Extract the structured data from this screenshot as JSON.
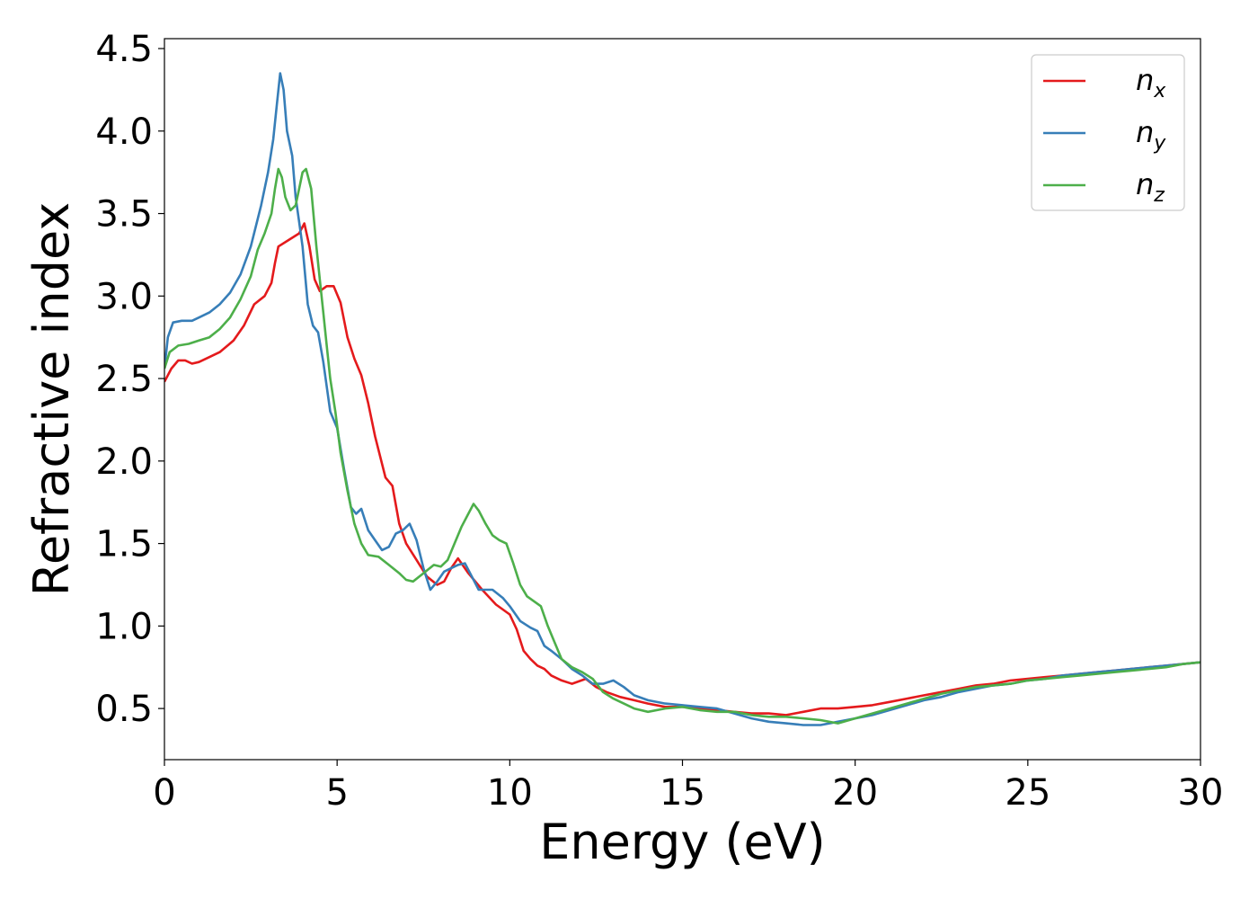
{
  "chart_data": {
    "type": "line",
    "xlabel": "Energy (eV)",
    "ylabel": "Refractive index",
    "xlim": [
      0,
      30
    ],
    "ylim": [
      0.19,
      4.56
    ],
    "xticks": [
      "0",
      "5",
      "10",
      "15",
      "20",
      "25",
      "30"
    ],
    "yticks": [
      "0.5",
      "1.0",
      "1.5",
      "2.0",
      "2.5",
      "3.0",
      "3.5",
      "4.0",
      "4.5"
    ],
    "grid": false,
    "legend_position": "top-right",
    "series": [
      {
        "name": "n",
        "subscript": "x",
        "color": "#e41a1c",
        "points": [
          [
            0,
            2.48
          ],
          [
            0.2,
            2.56
          ],
          [
            0.4,
            2.61
          ],
          [
            0.6,
            2.61
          ],
          [
            0.8,
            2.59
          ],
          [
            1.0,
            2.6
          ],
          [
            1.3,
            2.63
          ],
          [
            1.6,
            2.66
          ],
          [
            2.0,
            2.73
          ],
          [
            2.3,
            2.82
          ],
          [
            2.6,
            2.95
          ],
          [
            2.9,
            3.0
          ],
          [
            3.1,
            3.08
          ],
          [
            3.2,
            3.2
          ],
          [
            3.3,
            3.3
          ],
          [
            3.6,
            3.34
          ],
          [
            3.9,
            3.38
          ],
          [
            4.05,
            3.44
          ],
          [
            4.2,
            3.3
          ],
          [
            4.35,
            3.1
          ],
          [
            4.5,
            3.03
          ],
          [
            4.7,
            3.06
          ],
          [
            4.9,
            3.06
          ],
          [
            5.1,
            2.96
          ],
          [
            5.3,
            2.75
          ],
          [
            5.5,
            2.62
          ],
          [
            5.7,
            2.52
          ],
          [
            5.9,
            2.35
          ],
          [
            6.1,
            2.15
          ],
          [
            6.4,
            1.9
          ],
          [
            6.6,
            1.85
          ],
          [
            6.8,
            1.62
          ],
          [
            7.0,
            1.5
          ],
          [
            7.3,
            1.4
          ],
          [
            7.6,
            1.3
          ],
          [
            7.9,
            1.25
          ],
          [
            8.1,
            1.27
          ],
          [
            8.3,
            1.35
          ],
          [
            8.5,
            1.41
          ],
          [
            8.8,
            1.32
          ],
          [
            9.2,
            1.22
          ],
          [
            9.6,
            1.13
          ],
          [
            10.0,
            1.07
          ],
          [
            10.2,
            0.98
          ],
          [
            10.4,
            0.85
          ],
          [
            10.6,
            0.8
          ],
          [
            10.8,
            0.76
          ],
          [
            11.0,
            0.74
          ],
          [
            11.2,
            0.7
          ],
          [
            11.5,
            0.67
          ],
          [
            11.8,
            0.65
          ],
          [
            12.2,
            0.68
          ],
          [
            12.5,
            0.63
          ],
          [
            12.8,
            0.6
          ],
          [
            13.2,
            0.57
          ],
          [
            13.6,
            0.55
          ],
          [
            14.0,
            0.53
          ],
          [
            14.5,
            0.51
          ],
          [
            15.0,
            0.51
          ],
          [
            15.5,
            0.5
          ],
          [
            16.0,
            0.49
          ],
          [
            16.5,
            0.48
          ],
          [
            17.0,
            0.47
          ],
          [
            17.5,
            0.47
          ],
          [
            18.0,
            0.46
          ],
          [
            18.5,
            0.48
          ],
          [
            19.0,
            0.5
          ],
          [
            19.5,
            0.5
          ],
          [
            20.0,
            0.51
          ],
          [
            20.5,
            0.52
          ],
          [
            21.0,
            0.54
          ],
          [
            21.5,
            0.56
          ],
          [
            22.0,
            0.58
          ],
          [
            22.5,
            0.6
          ],
          [
            23.0,
            0.62
          ],
          [
            23.5,
            0.64
          ],
          [
            24.0,
            0.65
          ],
          [
            24.5,
            0.67
          ],
          [
            25.0,
            0.68
          ],
          [
            25.5,
            0.69
          ],
          [
            26.0,
            0.7
          ],
          [
            26.5,
            0.71
          ],
          [
            27.0,
            0.72
          ],
          [
            27.5,
            0.73
          ],
          [
            28.0,
            0.74
          ],
          [
            28.5,
            0.75
          ],
          [
            29.0,
            0.76
          ],
          [
            29.5,
            0.77
          ],
          [
            30.0,
            0.78
          ]
        ]
      },
      {
        "name": "n",
        "subscript": "y",
        "color": "#377eb8",
        "points": [
          [
            0,
            2.56
          ],
          [
            0.1,
            2.75
          ],
          [
            0.25,
            2.84
          ],
          [
            0.5,
            2.85
          ],
          [
            0.8,
            2.85
          ],
          [
            1.0,
            2.87
          ],
          [
            1.3,
            2.9
          ],
          [
            1.6,
            2.95
          ],
          [
            1.9,
            3.02
          ],
          [
            2.2,
            3.13
          ],
          [
            2.5,
            3.3
          ],
          [
            2.8,
            3.55
          ],
          [
            3.0,
            3.75
          ],
          [
            3.15,
            3.95
          ],
          [
            3.25,
            4.15
          ],
          [
            3.35,
            4.35
          ],
          [
            3.45,
            4.25
          ],
          [
            3.55,
            4.0
          ],
          [
            3.7,
            3.85
          ],
          [
            3.8,
            3.6
          ],
          [
            3.9,
            3.45
          ],
          [
            4.0,
            3.3
          ],
          [
            4.15,
            2.95
          ],
          [
            4.3,
            2.82
          ],
          [
            4.45,
            2.78
          ],
          [
            4.6,
            2.6
          ],
          [
            4.8,
            2.3
          ],
          [
            5.0,
            2.2
          ],
          [
            5.2,
            1.95
          ],
          [
            5.4,
            1.72
          ],
          [
            5.55,
            1.68
          ],
          [
            5.7,
            1.71
          ],
          [
            5.9,
            1.58
          ],
          [
            6.1,
            1.52
          ],
          [
            6.3,
            1.46
          ],
          [
            6.5,
            1.48
          ],
          [
            6.7,
            1.56
          ],
          [
            6.9,
            1.58
          ],
          [
            7.1,
            1.62
          ],
          [
            7.3,
            1.52
          ],
          [
            7.5,
            1.35
          ],
          [
            7.7,
            1.22
          ],
          [
            7.9,
            1.27
          ],
          [
            8.1,
            1.33
          ],
          [
            8.3,
            1.35
          ],
          [
            8.5,
            1.37
          ],
          [
            8.7,
            1.38
          ],
          [
            8.9,
            1.3
          ],
          [
            9.1,
            1.22
          ],
          [
            9.3,
            1.22
          ],
          [
            9.5,
            1.22
          ],
          [
            9.8,
            1.17
          ],
          [
            10.0,
            1.12
          ],
          [
            10.3,
            1.03
          ],
          [
            10.6,
            0.99
          ],
          [
            10.8,
            0.97
          ],
          [
            11.0,
            0.88
          ],
          [
            11.2,
            0.85
          ],
          [
            11.5,
            0.8
          ],
          [
            11.8,
            0.74
          ],
          [
            12.1,
            0.7
          ],
          [
            12.4,
            0.65
          ],
          [
            12.7,
            0.65
          ],
          [
            13.0,
            0.67
          ],
          [
            13.3,
            0.63
          ],
          [
            13.6,
            0.58
          ],
          [
            14.0,
            0.55
          ],
          [
            14.5,
            0.53
          ],
          [
            15.0,
            0.52
          ],
          [
            15.5,
            0.51
          ],
          [
            16.0,
            0.5
          ],
          [
            16.5,
            0.47
          ],
          [
            17.0,
            0.44
          ],
          [
            17.5,
            0.42
          ],
          [
            18.0,
            0.41
          ],
          [
            18.5,
            0.4
          ],
          [
            19.0,
            0.4
          ],
          [
            19.5,
            0.42
          ],
          [
            20.0,
            0.44
          ],
          [
            20.5,
            0.46
          ],
          [
            21.0,
            0.49
          ],
          [
            21.5,
            0.52
          ],
          [
            22.0,
            0.55
          ],
          [
            22.5,
            0.57
          ],
          [
            23.0,
            0.6
          ],
          [
            23.5,
            0.62
          ],
          [
            24.0,
            0.64
          ],
          [
            24.5,
            0.65
          ],
          [
            25.0,
            0.67
          ],
          [
            25.5,
            0.68
          ],
          [
            26.0,
            0.7
          ],
          [
            26.5,
            0.71
          ],
          [
            27.0,
            0.72
          ],
          [
            27.5,
            0.73
          ],
          [
            28.0,
            0.74
          ],
          [
            28.5,
            0.75
          ],
          [
            29.0,
            0.76
          ],
          [
            29.5,
            0.77
          ],
          [
            30.0,
            0.78
          ]
        ]
      },
      {
        "name": "n",
        "subscript": "z",
        "color": "#4daf4a",
        "points": [
          [
            0,
            2.56
          ],
          [
            0.15,
            2.66
          ],
          [
            0.4,
            2.7
          ],
          [
            0.7,
            2.71
          ],
          [
            1.0,
            2.73
          ],
          [
            1.3,
            2.75
          ],
          [
            1.6,
            2.8
          ],
          [
            1.9,
            2.87
          ],
          [
            2.2,
            2.98
          ],
          [
            2.5,
            3.12
          ],
          [
            2.7,
            3.28
          ],
          [
            2.9,
            3.38
          ],
          [
            3.1,
            3.5
          ],
          [
            3.2,
            3.65
          ],
          [
            3.3,
            3.77
          ],
          [
            3.4,
            3.72
          ],
          [
            3.5,
            3.6
          ],
          [
            3.65,
            3.52
          ],
          [
            3.8,
            3.55
          ],
          [
            3.9,
            3.65
          ],
          [
            4.0,
            3.75
          ],
          [
            4.1,
            3.77
          ],
          [
            4.25,
            3.65
          ],
          [
            4.4,
            3.3
          ],
          [
            4.5,
            3.1
          ],
          [
            4.6,
            2.9
          ],
          [
            4.7,
            2.7
          ],
          [
            4.8,
            2.5
          ],
          [
            4.95,
            2.3
          ],
          [
            5.1,
            2.05
          ],
          [
            5.3,
            1.82
          ],
          [
            5.5,
            1.62
          ],
          [
            5.7,
            1.5
          ],
          [
            5.9,
            1.43
          ],
          [
            6.2,
            1.42
          ],
          [
            6.5,
            1.37
          ],
          [
            6.8,
            1.32
          ],
          [
            7.0,
            1.28
          ],
          [
            7.2,
            1.27
          ],
          [
            7.5,
            1.32
          ],
          [
            7.8,
            1.37
          ],
          [
            8.0,
            1.36
          ],
          [
            8.2,
            1.4
          ],
          [
            8.4,
            1.5
          ],
          [
            8.6,
            1.6
          ],
          [
            8.8,
            1.68
          ],
          [
            8.95,
            1.74
          ],
          [
            9.1,
            1.7
          ],
          [
            9.3,
            1.62
          ],
          [
            9.5,
            1.55
          ],
          [
            9.7,
            1.52
          ],
          [
            9.9,
            1.5
          ],
          [
            10.1,
            1.38
          ],
          [
            10.3,
            1.25
          ],
          [
            10.5,
            1.18
          ],
          [
            10.7,
            1.15
          ],
          [
            10.9,
            1.12
          ],
          [
            11.1,
            1.0
          ],
          [
            11.3,
            0.9
          ],
          [
            11.5,
            0.8
          ],
          [
            11.8,
            0.75
          ],
          [
            12.1,
            0.72
          ],
          [
            12.4,
            0.68
          ],
          [
            12.7,
            0.6
          ],
          [
            13.0,
            0.56
          ],
          [
            13.3,
            0.53
          ],
          [
            13.6,
            0.5
          ],
          [
            14.0,
            0.48
          ],
          [
            14.5,
            0.5
          ],
          [
            15.0,
            0.51
          ],
          [
            15.5,
            0.49
          ],
          [
            16.0,
            0.48
          ],
          [
            16.5,
            0.48
          ],
          [
            17.0,
            0.46
          ],
          [
            17.5,
            0.45
          ],
          [
            18.0,
            0.45
          ],
          [
            18.5,
            0.44
          ],
          [
            19.0,
            0.43
          ],
          [
            19.5,
            0.41
          ],
          [
            20.0,
            0.44
          ],
          [
            20.5,
            0.47
          ],
          [
            21.0,
            0.5
          ],
          [
            21.5,
            0.53
          ],
          [
            22.0,
            0.56
          ],
          [
            22.5,
            0.59
          ],
          [
            23.0,
            0.61
          ],
          [
            23.5,
            0.63
          ],
          [
            24.0,
            0.64
          ],
          [
            24.5,
            0.65
          ],
          [
            25.0,
            0.67
          ],
          [
            25.5,
            0.68
          ],
          [
            26.0,
            0.69
          ],
          [
            26.5,
            0.7
          ],
          [
            27.0,
            0.71
          ],
          [
            27.5,
            0.72
          ],
          [
            28.0,
            0.73
          ],
          [
            28.5,
            0.74
          ],
          [
            29.0,
            0.75
          ],
          [
            29.5,
            0.77
          ],
          [
            30.0,
            0.78
          ]
        ]
      }
    ]
  }
}
